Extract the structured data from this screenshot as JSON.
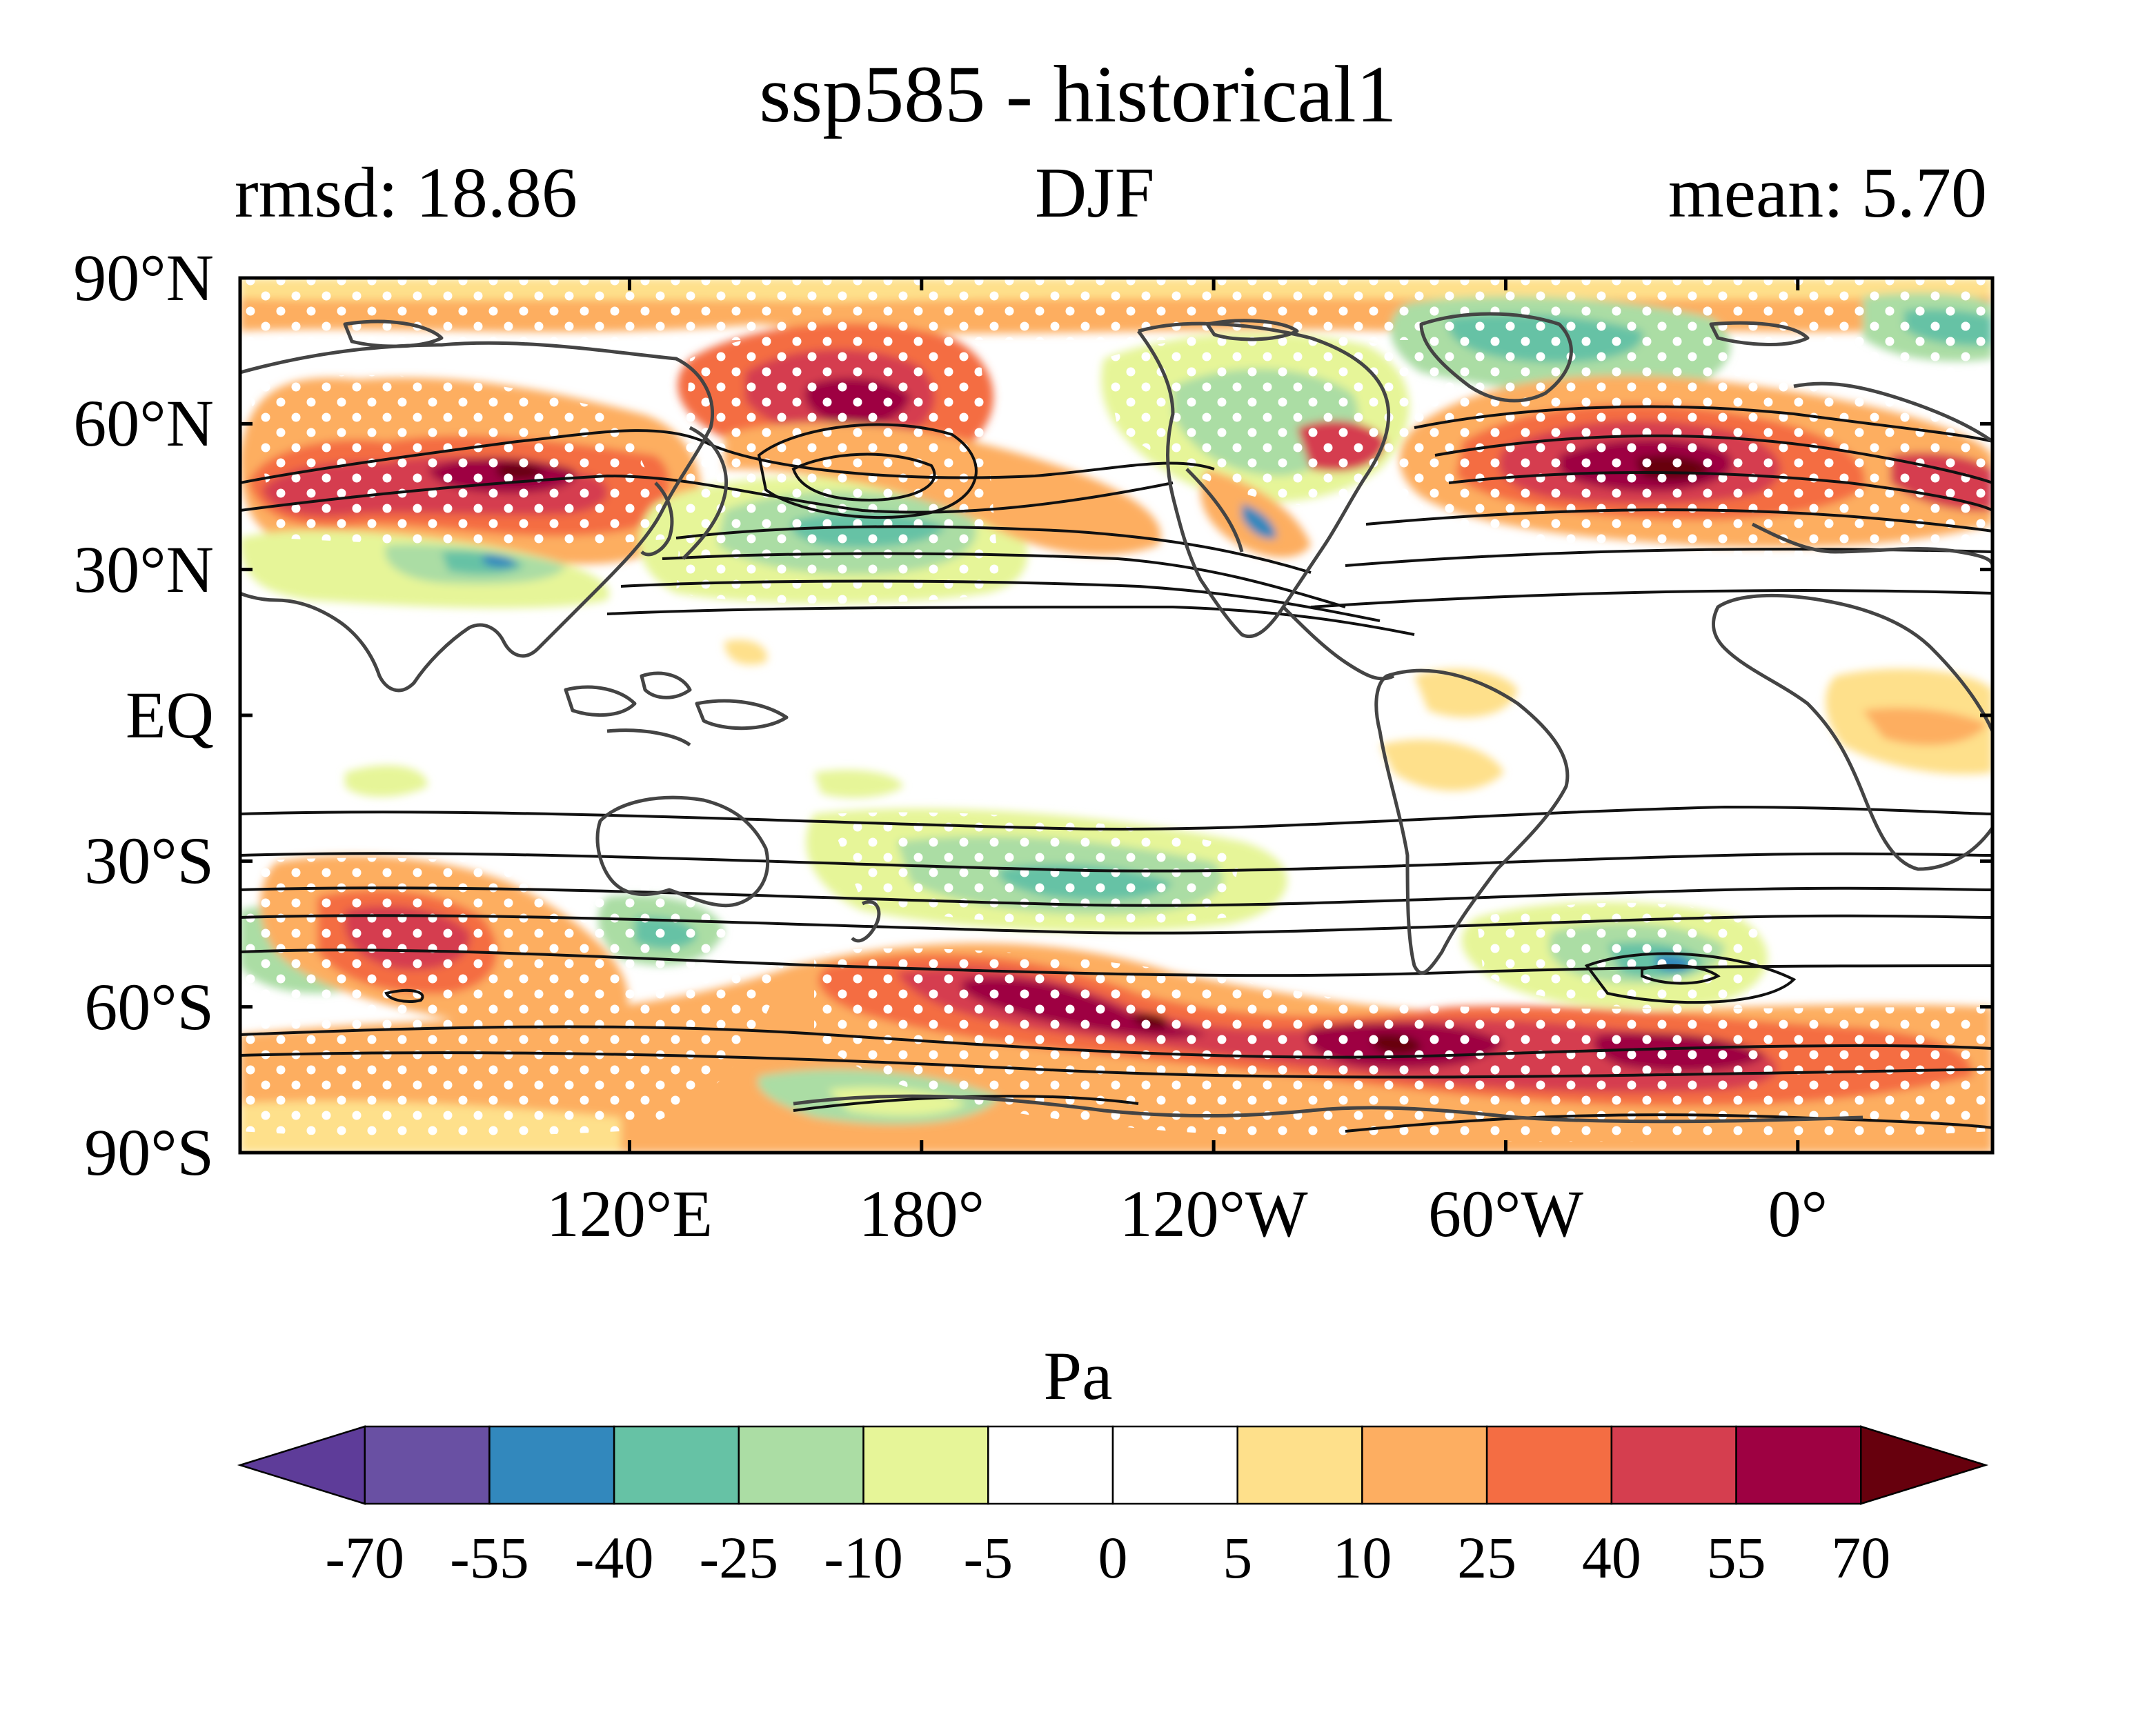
{
  "title": "ssp585 - historical1",
  "subtitle_left": "rmsd: 18.86",
  "subtitle_center": "DJF",
  "subtitle_right": "mean: 5.70",
  "y_ticks": [
    {
      "label": "90°N",
      "lat": 90
    },
    {
      "label": "60°N",
      "lat": 60
    },
    {
      "label": "30°N",
      "lat": 30
    },
    {
      "label": "EQ",
      "lat": 0
    },
    {
      "label": "30°S",
      "lat": -30
    },
    {
      "label": "60°S",
      "lat": -60
    },
    {
      "label": "90°S",
      "lat": -90
    }
  ],
  "x_ticks": [
    {
      "label": "120°E",
      "lon": 120
    },
    {
      "label": "180°",
      "lon": 180
    },
    {
      "label": "120°W",
      "lon": 240
    },
    {
      "label": "60°W",
      "lon": 300
    },
    {
      "label": "0°",
      "lon": 360
    }
  ],
  "colorbar": {
    "unit": "Pa",
    "levels": [
      "-70",
      "-55",
      "-40",
      "-25",
      "-10",
      "-5",
      "0",
      "5",
      "10",
      "25",
      "40",
      "55",
      "70"
    ],
    "colors": [
      "#5e3c99",
      "#6950a3",
      "#3288bd",
      "#66c2a5",
      "#abdda4",
      "#e6f598",
      "#ffffff",
      "#ffffff",
      "#fee08b",
      "#fdae61",
      "#f46d43",
      "#d53e4f",
      "#9e0142",
      "#67000d"
    ]
  },
  "map_extent": {
    "lon_start": 40,
    "lon_end": 400,
    "lat_start": -90,
    "lat_end": 90
  },
  "colors": {
    "coast": "#444444",
    "contour": "#111111",
    "stipple": "#ffffff"
  }
}
